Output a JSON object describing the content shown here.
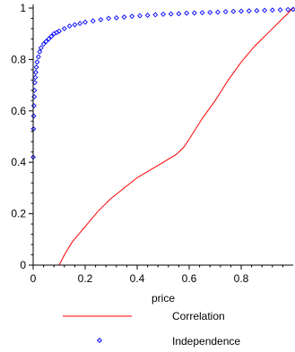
{
  "chart_data": {
    "type": "line",
    "title": "",
    "xlabel": "price",
    "ylabel": "",
    "xlim": [
      0,
      1
    ],
    "ylim": [
      0,
      1
    ],
    "grid": false,
    "legend_placement": "bottom",
    "x_ticks": [
      "0",
      "0.2",
      "0.4",
      "0.6",
      "0.8"
    ],
    "y_ticks": [
      "0",
      "0.2",
      "0.4",
      "0.6",
      "0.8",
      "1"
    ],
    "series": [
      {
        "name": "Correlation",
        "style": "line",
        "color": "#ff0000",
        "points": [
          [
            0,
            0
          ],
          [
            0.1,
            0
          ],
          [
            0.12,
            0.04
          ],
          [
            0.15,
            0.09
          ],
          [
            0.2,
            0.15
          ],
          [
            0.25,
            0.21
          ],
          [
            0.3,
            0.26
          ],
          [
            0.35,
            0.3
          ],
          [
            0.4,
            0.34
          ],
          [
            0.45,
            0.37
          ],
          [
            0.5,
            0.4
          ],
          [
            0.55,
            0.43
          ],
          [
            0.58,
            0.46
          ],
          [
            0.6,
            0.49
          ],
          [
            0.65,
            0.57
          ],
          [
            0.7,
            0.64
          ],
          [
            0.75,
            0.72
          ],
          [
            0.8,
            0.79
          ],
          [
            0.85,
            0.85
          ],
          [
            0.9,
            0.9
          ],
          [
            0.95,
            0.95
          ],
          [
            1.0,
            1.0
          ]
        ]
      },
      {
        "name": "Independence",
        "style": "markers",
        "marker": "diamond",
        "color": "#0000ff",
        "points": [
          [
            0,
            0.42
          ],
          [
            0.001,
            0.53
          ],
          [
            0.002,
            0.58
          ],
          [
            0.003,
            0.62
          ],
          [
            0.004,
            0.655
          ],
          [
            0.005,
            0.68
          ],
          [
            0.006,
            0.71
          ],
          [
            0.008,
            0.73
          ],
          [
            0.01,
            0.75
          ],
          [
            0.012,
            0.77
          ],
          [
            0.015,
            0.79
          ],
          [
            0.02,
            0.81
          ],
          [
            0.025,
            0.83
          ],
          [
            0.03,
            0.845
          ],
          [
            0.04,
            0.86
          ],
          [
            0.05,
            0.87
          ],
          [
            0.06,
            0.88
          ],
          [
            0.07,
            0.89
          ],
          [
            0.08,
            0.9
          ],
          [
            0.09,
            0.905
          ],
          [
            0.1,
            0.91
          ],
          [
            0.12,
            0.92
          ],
          [
            0.14,
            0.93
          ],
          [
            0.16,
            0.935
          ],
          [
            0.18,
            0.94
          ],
          [
            0.2,
            0.945
          ],
          [
            0.23,
            0.95
          ],
          [
            0.26,
            0.955
          ],
          [
            0.29,
            0.96
          ],
          [
            0.32,
            0.962
          ],
          [
            0.35,
            0.965
          ],
          [
            0.38,
            0.968
          ],
          [
            0.41,
            0.97
          ],
          [
            0.44,
            0.972
          ],
          [
            0.47,
            0.974
          ],
          [
            0.5,
            0.976
          ],
          [
            0.53,
            0.977
          ],
          [
            0.56,
            0.978
          ],
          [
            0.59,
            0.98
          ],
          [
            0.62,
            0.981
          ],
          [
            0.65,
            0.982
          ],
          [
            0.68,
            0.983
          ],
          [
            0.71,
            0.984
          ],
          [
            0.74,
            0.986
          ],
          [
            0.77,
            0.987
          ],
          [
            0.8,
            0.988
          ],
          [
            0.83,
            0.989
          ],
          [
            0.86,
            0.99
          ],
          [
            0.89,
            0.991
          ],
          [
            0.92,
            0.992
          ],
          [
            0.95,
            0.993
          ],
          [
            0.98,
            0.994
          ],
          [
            1.0,
            0.995
          ]
        ]
      }
    ]
  }
}
